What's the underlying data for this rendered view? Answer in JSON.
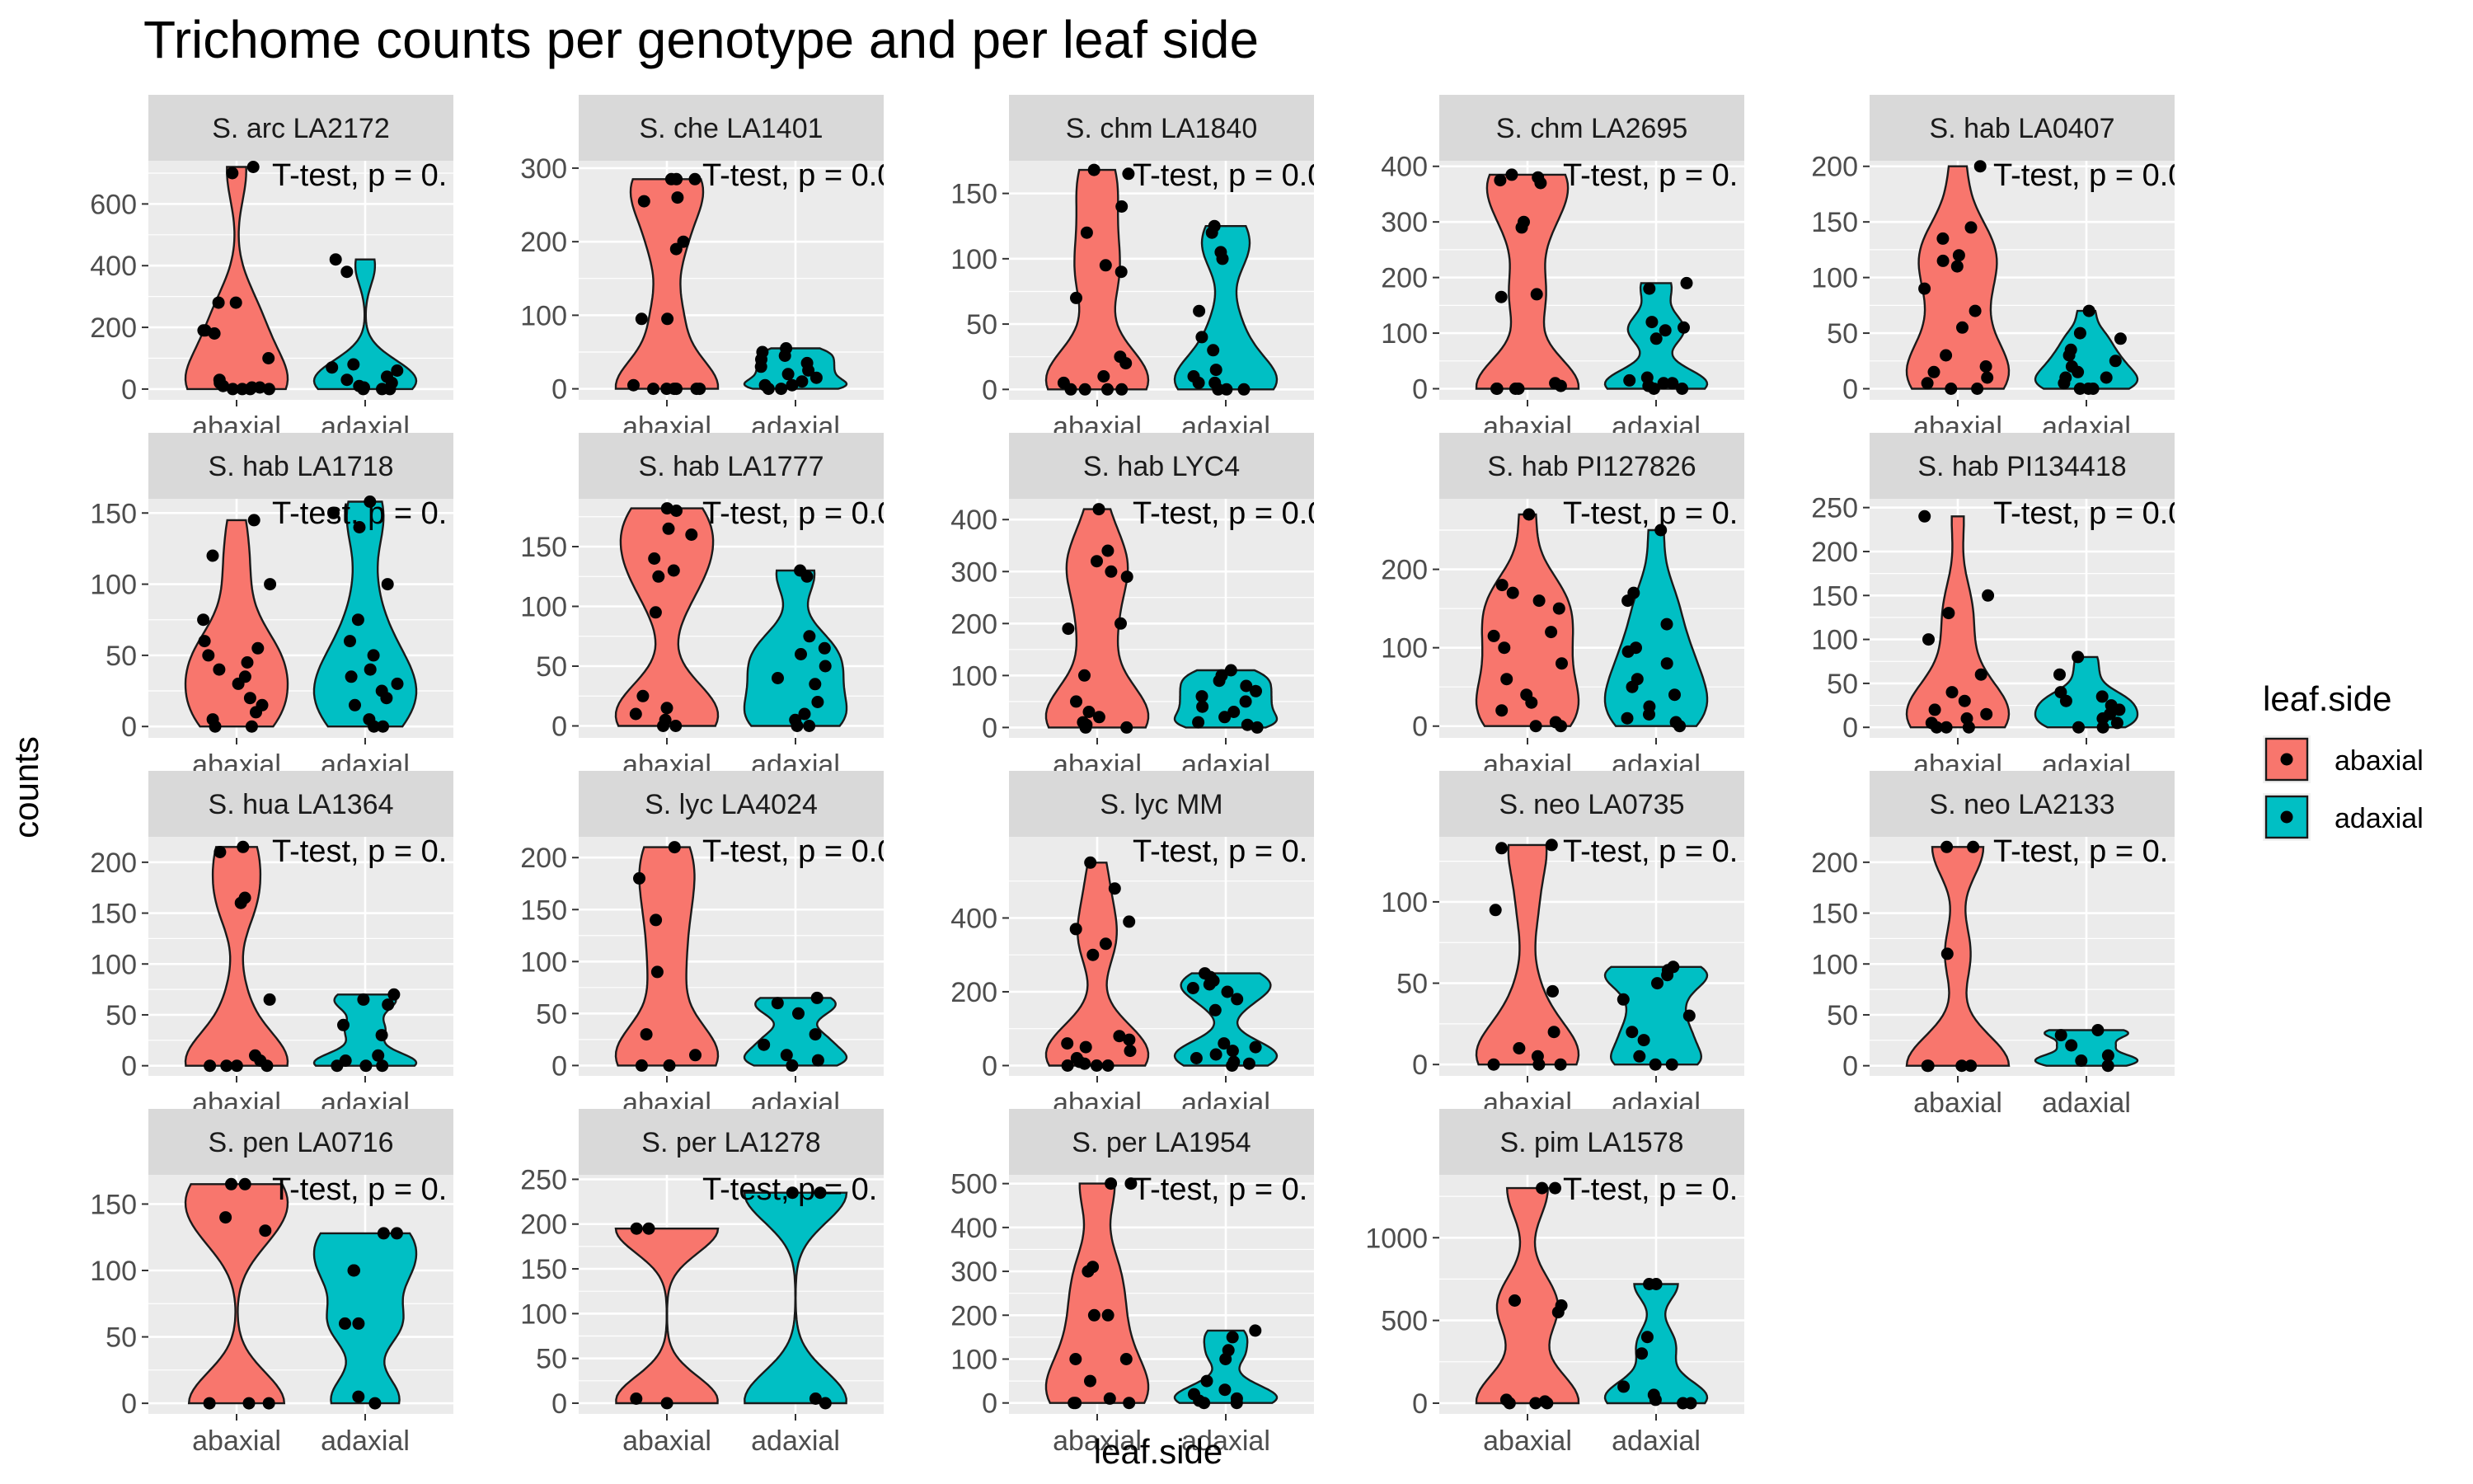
{
  "chart_data": {
    "type": "violin",
    "title": "Trichome counts per genotype and per leaf side",
    "xlabel": "leaf.side",
    "ylabel": "counts",
    "categories": [
      "abaxial",
      "adaxial"
    ],
    "colors": {
      "abaxial": "#F8766D",
      "adaxial": "#00BFC4"
    },
    "legend": {
      "title": "leaf.side",
      "position": "right",
      "entries": [
        "abaxial",
        "adaxial"
      ]
    },
    "grid": true,
    "panels": [
      {
        "title": "S. arc LA2172",
        "annotation": "T-test, p = 0.",
        "ylim": [
          -35,
          740
        ],
        "yticks": [
          0,
          200,
          400,
          600
        ],
        "series": [
          {
            "name": "abaxial",
            "values": [
              720,
              700,
              280,
              280,
              190,
              180,
              190,
              100,
              30,
              20,
              10,
              5,
              5,
              0,
              0,
              0,
              0
            ]
          },
          {
            "name": "adaxial",
            "values": [
              420,
              380,
              80,
              70,
              60,
              40,
              30,
              20,
              10,
              5,
              0,
              0,
              0
            ]
          }
        ]
      },
      {
        "title": "S. che LA1401",
        "annotation": "T-test, p = 0.0",
        "ylim": [
          -15,
          310
        ],
        "yticks": [
          0,
          100,
          200,
          300
        ],
        "series": [
          {
            "name": "abaxial",
            "values": [
              285,
              285,
              285,
              260,
              255,
              200,
              190,
              95,
              95,
              5,
              0,
              0,
              0,
              0,
              0,
              0
            ]
          },
          {
            "name": "adaxial",
            "values": [
              55,
              50,
              45,
              40,
              35,
              30,
              25,
              20,
              15,
              10,
              5,
              5,
              0,
              0
            ]
          }
        ]
      },
      {
        "title": "S. chm LA1840",
        "annotation": "T-test, p = 0.0",
        "ylim": [
          -8,
          175
        ],
        "yticks": [
          0,
          50,
          100,
          150
        ],
        "series": [
          {
            "name": "abaxial",
            "values": [
              168,
              165,
              140,
              120,
              95,
              90,
              70,
              25,
              20,
              10,
              5,
              0,
              0,
              0,
              0
            ]
          },
          {
            "name": "adaxial",
            "values": [
              125,
              120,
              105,
              100,
              60,
              40,
              30,
              15,
              10,
              5,
              5,
              0,
              0,
              0
            ]
          }
        ]
      },
      {
        "title": "S. chm LA2695",
        "annotation": "T-test, p = 0.",
        "ylim": [
          -20,
          410
        ],
        "yticks": [
          0,
          100,
          200,
          300,
          400
        ],
        "series": [
          {
            "name": "abaxial",
            "values": [
              385,
              380,
              375,
              370,
              300,
              290,
              170,
              165,
              10,
              5,
              0,
              0,
              0,
              0
            ]
          },
          {
            "name": "adaxial",
            "values": [
              190,
              180,
              120,
              110,
              105,
              90,
              20,
              15,
              10,
              10,
              5,
              0,
              0
            ]
          }
        ]
      },
      {
        "title": "S. hab LA0407",
        "annotation": "T-test, p = 0.0",
        "ylim": [
          -10,
          205
        ],
        "yticks": [
          0,
          50,
          100,
          150,
          200
        ],
        "series": [
          {
            "name": "abaxial",
            "values": [
              200,
              145,
              135,
              120,
              115,
              110,
              90,
              70,
              55,
              30,
              20,
              15,
              10,
              5,
              0,
              0
            ]
          },
          {
            "name": "adaxial",
            "values": [
              70,
              50,
              45,
              35,
              30,
              25,
              20,
              15,
              10,
              10,
              5,
              0,
              0,
              0
            ]
          }
        ]
      },
      {
        "title": "S. hab LA1718",
        "annotation": "T-test, p = 0.",
        "ylim": [
          -8,
          160
        ],
        "yticks": [
          0,
          50,
          100,
          150
        ],
        "series": [
          {
            "name": "abaxial",
            "values": [
              145,
              120,
              100,
              75,
              60,
              55,
              50,
              45,
              40,
              35,
              30,
              20,
              15,
              10,
              5,
              0,
              0
            ]
          },
          {
            "name": "adaxial",
            "values": [
              158,
              150,
              140,
              100,
              75,
              60,
              50,
              40,
              35,
              30,
              25,
              20,
              15,
              5,
              0,
              0
            ]
          }
        ]
      },
      {
        "title": "S. hab LA1777",
        "annotation": "T-test, p = 0.0",
        "ylim": [
          -10,
          190
        ],
        "yticks": [
          0,
          50,
          100,
          150
        ],
        "series": [
          {
            "name": "abaxial",
            "values": [
              182,
              180,
              165,
              160,
              140,
              130,
              125,
              95,
              25,
              15,
              10,
              5,
              0,
              0
            ]
          },
          {
            "name": "adaxial",
            "values": [
              130,
              125,
              75,
              65,
              60,
              50,
              40,
              35,
              20,
              10,
              5,
              0,
              0
            ]
          }
        ]
      },
      {
        "title": "S. hab LYC4",
        "annotation": "T-test, p = 0.0",
        "ylim": [
          -20,
          440
        ],
        "yticks": [
          0,
          100,
          200,
          300,
          400
        ],
        "series": [
          {
            "name": "abaxial",
            "values": [
              420,
              340,
              320,
              300,
              290,
              200,
              190,
              100,
              50,
              30,
              20,
              10,
              5,
              0,
              0
            ]
          },
          {
            "name": "adaxial",
            "values": [
              110,
              100,
              90,
              80,
              70,
              60,
              50,
              40,
              30,
              20,
              10,
              5,
              0
            ]
          }
        ]
      },
      {
        "title": "S. hab PI127826",
        "annotation": "T-test, p = 0.",
        "ylim": [
          -15,
          290
        ],
        "yticks": [
          0,
          100,
          200
        ],
        "series": [
          {
            "name": "abaxial",
            "values": [
              270,
              180,
              170,
              160,
              150,
              120,
              115,
              100,
              80,
              60,
              40,
              30,
              20,
              5,
              0,
              0
            ]
          },
          {
            "name": "adaxial",
            "values": [
              250,
              170,
              160,
              130,
              100,
              95,
              80,
              60,
              50,
              40,
              25,
              15,
              10,
              5,
              0
            ]
          }
        ]
      },
      {
        "title": "S. hab PI134418",
        "annotation": "T-test, p = 0.0",
        "ylim": [
          -12,
          260
        ],
        "yticks": [
          0,
          50,
          100,
          150,
          200,
          250
        ],
        "series": [
          {
            "name": "abaxial",
            "values": [
              240,
              150,
              130,
              100,
              60,
              40,
              30,
              20,
              15,
              10,
              5,
              0,
              0,
              0
            ]
          },
          {
            "name": "adaxial",
            "values": [
              80,
              60,
              40,
              35,
              30,
              25,
              20,
              15,
              10,
              5,
              0,
              0
            ]
          }
        ]
      },
      {
        "title": "S. hua LA1364",
        "annotation": "T-test, p = 0.",
        "ylim": [
          -10,
          225
        ],
        "yticks": [
          0,
          50,
          100,
          150,
          200
        ],
        "series": [
          {
            "name": "abaxial",
            "values": [
              215,
              210,
              165,
              160,
              65,
              10,
              5,
              0,
              0,
              0,
              0
            ]
          },
          {
            "name": "adaxial",
            "values": [
              70,
              65,
              60,
              40,
              30,
              10,
              5,
              0,
              0,
              0
            ]
          }
        ]
      },
      {
        "title": "S. lyc LA4024",
        "annotation": "T-test, p = 0.0",
        "ylim": [
          -10,
          220
        ],
        "yticks": [
          0,
          50,
          100,
          150,
          200
        ],
        "series": [
          {
            "name": "abaxial",
            "values": [
              210,
              180,
              140,
              90,
              30,
              10,
              0,
              0
            ]
          },
          {
            "name": "adaxial",
            "values": [
              65,
              60,
              50,
              30,
              20,
              10,
              5,
              0
            ]
          }
        ]
      },
      {
        "title": "S. lyc MM",
        "annotation": "T-test, p = 0.",
        "ylim": [
          -28,
          620
        ],
        "yticks": [
          0,
          200,
          400
        ],
        "series": [
          {
            "name": "abaxial",
            "values": [
              550,
              480,
              390,
              370,
              330,
              300,
              80,
              70,
              60,
              50,
              40,
              20,
              10,
              5,
              0,
              0,
              0
            ]
          },
          {
            "name": "adaxial",
            "values": [
              250,
              240,
              230,
              220,
              210,
              200,
              180,
              150,
              60,
              50,
              40,
              30,
              20,
              10,
              5,
              0
            ]
          }
        ]
      },
      {
        "title": "S. neo LA0735",
        "annotation": "T-test, p = 0.",
        "ylim": [
          -7,
          140
        ],
        "yticks": [
          0,
          50,
          100
        ],
        "series": [
          {
            "name": "abaxial",
            "values": [
              135,
              133,
              95,
              45,
              20,
              10,
              5,
              0,
              0,
              0
            ]
          },
          {
            "name": "adaxial",
            "values": [
              60,
              58,
              55,
              50,
              40,
              30,
              20,
              15,
              5,
              0,
              0
            ]
          }
        ]
      },
      {
        "title": "S. neo LA2133",
        "annotation": "T-test, p = 0.",
        "ylim": [
          -10,
          225
        ],
        "yticks": [
          0,
          50,
          100,
          150,
          200
        ],
        "series": [
          {
            "name": "abaxial",
            "values": [
              215,
              215,
              110,
              0,
              0,
              0,
              0
            ]
          },
          {
            "name": "adaxial",
            "values": [
              35,
              30,
              20,
              10,
              5,
              0
            ]
          }
        ]
      },
      {
        "title": "S. pen LA0716",
        "annotation": "T-test, p = 0.",
        "ylim": [
          -8,
          172
        ],
        "yticks": [
          0,
          50,
          100,
          150
        ],
        "series": [
          {
            "name": "abaxial",
            "values": [
              165,
              165,
              140,
              130,
              0,
              0,
              0
            ]
          },
          {
            "name": "adaxial",
            "values": [
              128,
              128,
              100,
              100,
              60,
              60,
              5,
              0
            ]
          }
        ]
      },
      {
        "title": "S. per LA1278",
        "annotation": "T-test, p = 0.",
        "ylim": [
          -12,
          255
        ],
        "yticks": [
          0,
          50,
          100,
          150,
          200,
          250
        ],
        "series": [
          {
            "name": "abaxial",
            "values": [
              195,
              195,
              5,
              0
            ]
          },
          {
            "name": "adaxial",
            "values": [
              235,
              235,
              5,
              0
            ]
          }
        ]
      },
      {
        "title": "S. per LA1954",
        "annotation": "T-test, p = 0.",
        "ylim": [
          -25,
          520
        ],
        "yticks": [
          0,
          100,
          200,
          300,
          400,
          500
        ],
        "series": [
          {
            "name": "abaxial",
            "values": [
              500,
              500,
              310,
              300,
              200,
              200,
              100,
              100,
              50,
              10,
              0,
              0,
              0
            ]
          },
          {
            "name": "adaxial",
            "values": [
              165,
              150,
              120,
              100,
              50,
              30,
              20,
              10,
              5,
              0,
              0
            ]
          }
        ]
      },
      {
        "title": "S. pim LA1578",
        "annotation": "T-test, p = 0.",
        "ylim": [
          -65,
          1380
        ],
        "yticks": [
          0,
          500,
          1000
        ],
        "series": [
          {
            "name": "abaxial",
            "values": [
              1300,
              1300,
              620,
              590,
              550,
              20,
              10,
              0,
              0,
              0
            ]
          },
          {
            "name": "adaxial",
            "values": [
              720,
              720,
              400,
              300,
              100,
              50,
              20,
              0,
              0
            ]
          }
        ]
      }
    ]
  }
}
